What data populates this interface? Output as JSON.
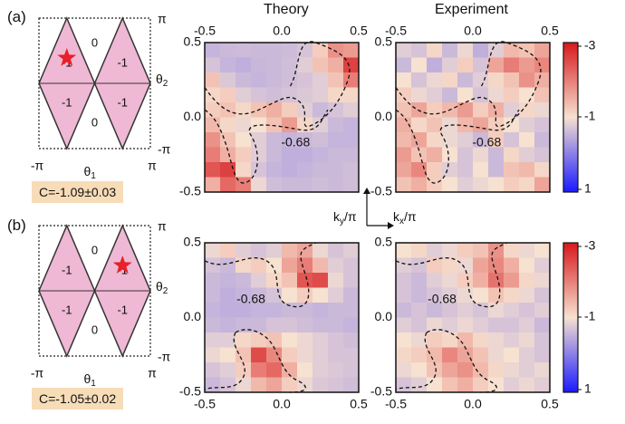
{
  "panel_labels": [
    "(a)",
    "(b)"
  ],
  "titles": {
    "theory": "Theory",
    "experiment": "Experiment"
  },
  "diagram": {
    "theta1_label": "θ1",
    "theta2_label": "θ2",
    "pi": "π",
    "neg_pi": "-π",
    "cells_a": [
      "0",
      "-1",
      "-1",
      "-1",
      "-1",
      "0"
    ],
    "cells_b": [
      "0",
      "-1",
      "-1",
      "-1",
      "-1",
      "0"
    ]
  },
  "chern": {
    "a": "C=-1.09±0.03",
    "b": "C=-1.05±0.02"
  },
  "axis_ticks": {
    "x": [
      "-0.5",
      "0.0",
      "0.5"
    ],
    "y": [
      "0.5",
      "0.0",
      "-0.5"
    ]
  },
  "axis_labels": {
    "ky": "ky/π",
    "kx": "kx/π"
  },
  "contour_value": "-0.68",
  "colorbar": {
    "ticks": [
      "-3",
      "-1",
      "1"
    ],
    "colors": [
      "#d7191c",
      "#f7e1d0",
      "#1a1aff"
    ]
  },
  "chart_data": [
    {
      "type": "heatmap",
      "panel": "a",
      "title": "Theory",
      "x_range": [
        -0.5,
        0.5
      ],
      "y_range": [
        -0.5,
        0.5
      ],
      "grid": [
        [
          -0.55,
          -0.6,
          -0.62,
          -0.6,
          -0.6,
          -0.62,
          -0.7,
          -1.2,
          -1.8,
          -1.7
        ],
        [
          -0.7,
          -0.55,
          -0.5,
          -0.58,
          -0.6,
          -0.65,
          -0.8,
          -1.3,
          -1.5,
          -2.6
        ],
        [
          -1.3,
          -0.75,
          -0.6,
          -0.55,
          -0.6,
          -0.65,
          -0.7,
          -0.8,
          -1.3,
          -2.0
        ],
        [
          -1.1,
          -1.2,
          -0.8,
          -0.7,
          -0.65,
          -0.7,
          -0.75,
          -0.8,
          -1.1,
          -1.1
        ],
        [
          -1.2,
          -1.3,
          -1.1,
          -1.3,
          -1.5,
          -1.2,
          -0.8,
          -0.6,
          -0.7,
          -0.8
        ],
        [
          -1.4,
          -1.1,
          -0.9,
          -1.0,
          -1.3,
          -1.7,
          -1.1,
          -0.8,
          -0.6,
          -0.55
        ],
        [
          -1.8,
          -1.3,
          -1.0,
          -0.8,
          -0.6,
          -0.55,
          -0.6,
          -0.65,
          -0.55,
          -0.55
        ],
        [
          -2.0,
          -1.5,
          -1.2,
          -0.8,
          -0.6,
          -0.5,
          -0.5,
          -0.55,
          -0.6,
          -0.6
        ],
        [
          -2.4,
          -2.6,
          -1.1,
          -0.7,
          -0.55,
          -0.5,
          -0.55,
          -0.6,
          -0.6,
          -0.65
        ],
        [
          -1.5,
          -2.2,
          -2.0,
          -0.9,
          -0.65,
          -0.6,
          -0.6,
          -0.65,
          -0.6,
          -0.65
        ]
      ]
    },
    {
      "type": "heatmap",
      "panel": "a",
      "title": "Experiment",
      "x_range": [
        -0.5,
        0.5
      ],
      "y_range": [
        -0.5,
        0.5
      ],
      "grid": [
        [
          -0.8,
          -0.7,
          -1.1,
          -0.6,
          -0.9,
          -0.5,
          -0.8,
          -1.4,
          -1.3,
          -1.6
        ],
        [
          -0.6,
          -1.0,
          -0.5,
          -0.8,
          -1.2,
          -0.7,
          -1.6,
          -2.0,
          -1.7,
          -1.9
        ],
        [
          -1.0,
          -0.7,
          -0.9,
          -1.1,
          -0.6,
          -0.8,
          -1.1,
          -1.3,
          -1.8,
          -1.5
        ],
        [
          -1.2,
          -0.9,
          -0.8,
          -0.6,
          -1.0,
          -0.7,
          -0.9,
          -1.2,
          -1.0,
          -1.3
        ],
        [
          -1.3,
          -1.6,
          -1.2,
          -1.4,
          -1.7,
          -1.2,
          -1.5,
          -0.8,
          -1.1,
          -0.9
        ],
        [
          -1.5,
          -1.1,
          -1.3,
          -0.9,
          -1.4,
          -1.6,
          -1.2,
          -1.0,
          -0.8,
          -0.7
        ],
        [
          -1.4,
          -1.6,
          -1.1,
          -0.9,
          -0.8,
          -0.6,
          -1.2,
          -0.7,
          -1.0,
          -0.6
        ],
        [
          -1.7,
          -1.3,
          -1.5,
          -1.0,
          -0.7,
          -0.9,
          -0.6,
          -1.1,
          -0.8,
          -0.7
        ],
        [
          -1.6,
          -1.9,
          -1.2,
          -0.8,
          -0.7,
          -1.0,
          -0.6,
          -1.3,
          -1.4,
          -1.1
        ],
        [
          -1.3,
          -1.5,
          -1.2,
          -1.0,
          -0.8,
          -0.9,
          -1.0,
          -1.2,
          -1.1,
          -1.6
        ]
      ]
    },
    {
      "type": "heatmap",
      "panel": "b",
      "title": "Theory",
      "x_range": [
        -0.5,
        0.5
      ],
      "y_range": [
        -0.5,
        0.5
      ],
      "grid": [
        [
          -0.9,
          -1.2,
          -0.8,
          -0.7,
          -0.8,
          -1.4,
          -1.6,
          -0.9,
          -0.7,
          -0.8
        ],
        [
          -0.7,
          -0.6,
          -1.1,
          -1.2,
          -1.0,
          -1.6,
          -2.0,
          -1.4,
          -0.8,
          -0.7
        ],
        [
          -0.6,
          -0.55,
          -0.6,
          -0.8,
          -1.1,
          -1.3,
          -2.4,
          -2.5,
          -0.9,
          -0.7
        ],
        [
          -0.6,
          -0.5,
          -0.55,
          -0.6,
          -0.7,
          -1.0,
          -1.2,
          -1.0,
          -0.8,
          -0.6
        ],
        [
          -0.55,
          -0.5,
          -0.5,
          -0.55,
          -0.55,
          -0.6,
          -0.6,
          -0.55,
          -0.6,
          -0.6
        ],
        [
          -0.6,
          -0.55,
          -0.6,
          -0.6,
          -0.7,
          -0.7,
          -0.65,
          -0.6,
          -0.6,
          -0.55
        ],
        [
          -0.8,
          -0.8,
          -1.1,
          -1.2,
          -1.3,
          -1.0,
          -0.9,
          -0.8,
          -0.7,
          -0.65
        ],
        [
          -0.9,
          -1.0,
          -1.3,
          -2.5,
          -1.9,
          -1.2,
          -0.9,
          -0.8,
          -0.7,
          -0.7
        ],
        [
          -0.7,
          -0.8,
          -1.2,
          -2.0,
          -2.2,
          -1.5,
          -1.0,
          -0.8,
          -0.75,
          -0.7
        ],
        [
          -0.6,
          -0.7,
          -0.9,
          -1.4,
          -1.6,
          -1.2,
          -0.9,
          -0.75,
          -0.7,
          -0.65
        ]
      ]
    },
    {
      "type": "heatmap",
      "panel": "b",
      "title": "Experiment",
      "x_range": [
        -0.5,
        0.5
      ],
      "y_range": [
        -0.5,
        0.5
      ],
      "grid": [
        [
          -1.0,
          -1.1,
          -0.8,
          -0.9,
          -1.2,
          -1.3,
          -1.8,
          -1.1,
          -0.9,
          -1.0
        ],
        [
          -0.8,
          -0.7,
          -1.2,
          -1.1,
          -0.9,
          -1.6,
          -1.9,
          -1.5,
          -1.0,
          -0.8
        ],
        [
          -0.7,
          -0.6,
          -0.8,
          -0.9,
          -1.2,
          -1.5,
          -2.1,
          -1.7,
          -1.1,
          -0.9
        ],
        [
          -0.7,
          -0.6,
          -0.7,
          -0.8,
          -0.9,
          -1.0,
          -1.3,
          -1.1,
          -0.9,
          -0.7
        ],
        [
          -0.6,
          -0.7,
          -0.6,
          -0.7,
          -0.8,
          -0.7,
          -0.9,
          -0.8,
          -0.7,
          -0.8
        ],
        [
          -0.8,
          -0.7,
          -0.9,
          -0.8,
          -0.9,
          -0.8,
          -0.7,
          -0.7,
          -0.8,
          -0.6
        ],
        [
          -1.0,
          -0.9,
          -1.2,
          -1.1,
          -1.4,
          -1.1,
          -0.9,
          -0.8,
          -0.9,
          -0.7
        ],
        [
          -1.1,
          -1.2,
          -1.4,
          -1.9,
          -1.6,
          -1.3,
          -0.9,
          -1.0,
          -0.8,
          -0.7
        ],
        [
          -0.9,
          -1.0,
          -1.3,
          -1.6,
          -1.8,
          -1.4,
          -1.1,
          -0.9,
          -0.8,
          -0.9
        ],
        [
          -0.7,
          -0.8,
          -1.0,
          -1.3,
          -1.5,
          -1.2,
          -1.0,
          -0.8,
          -0.9,
          -0.8
        ]
      ]
    }
  ]
}
